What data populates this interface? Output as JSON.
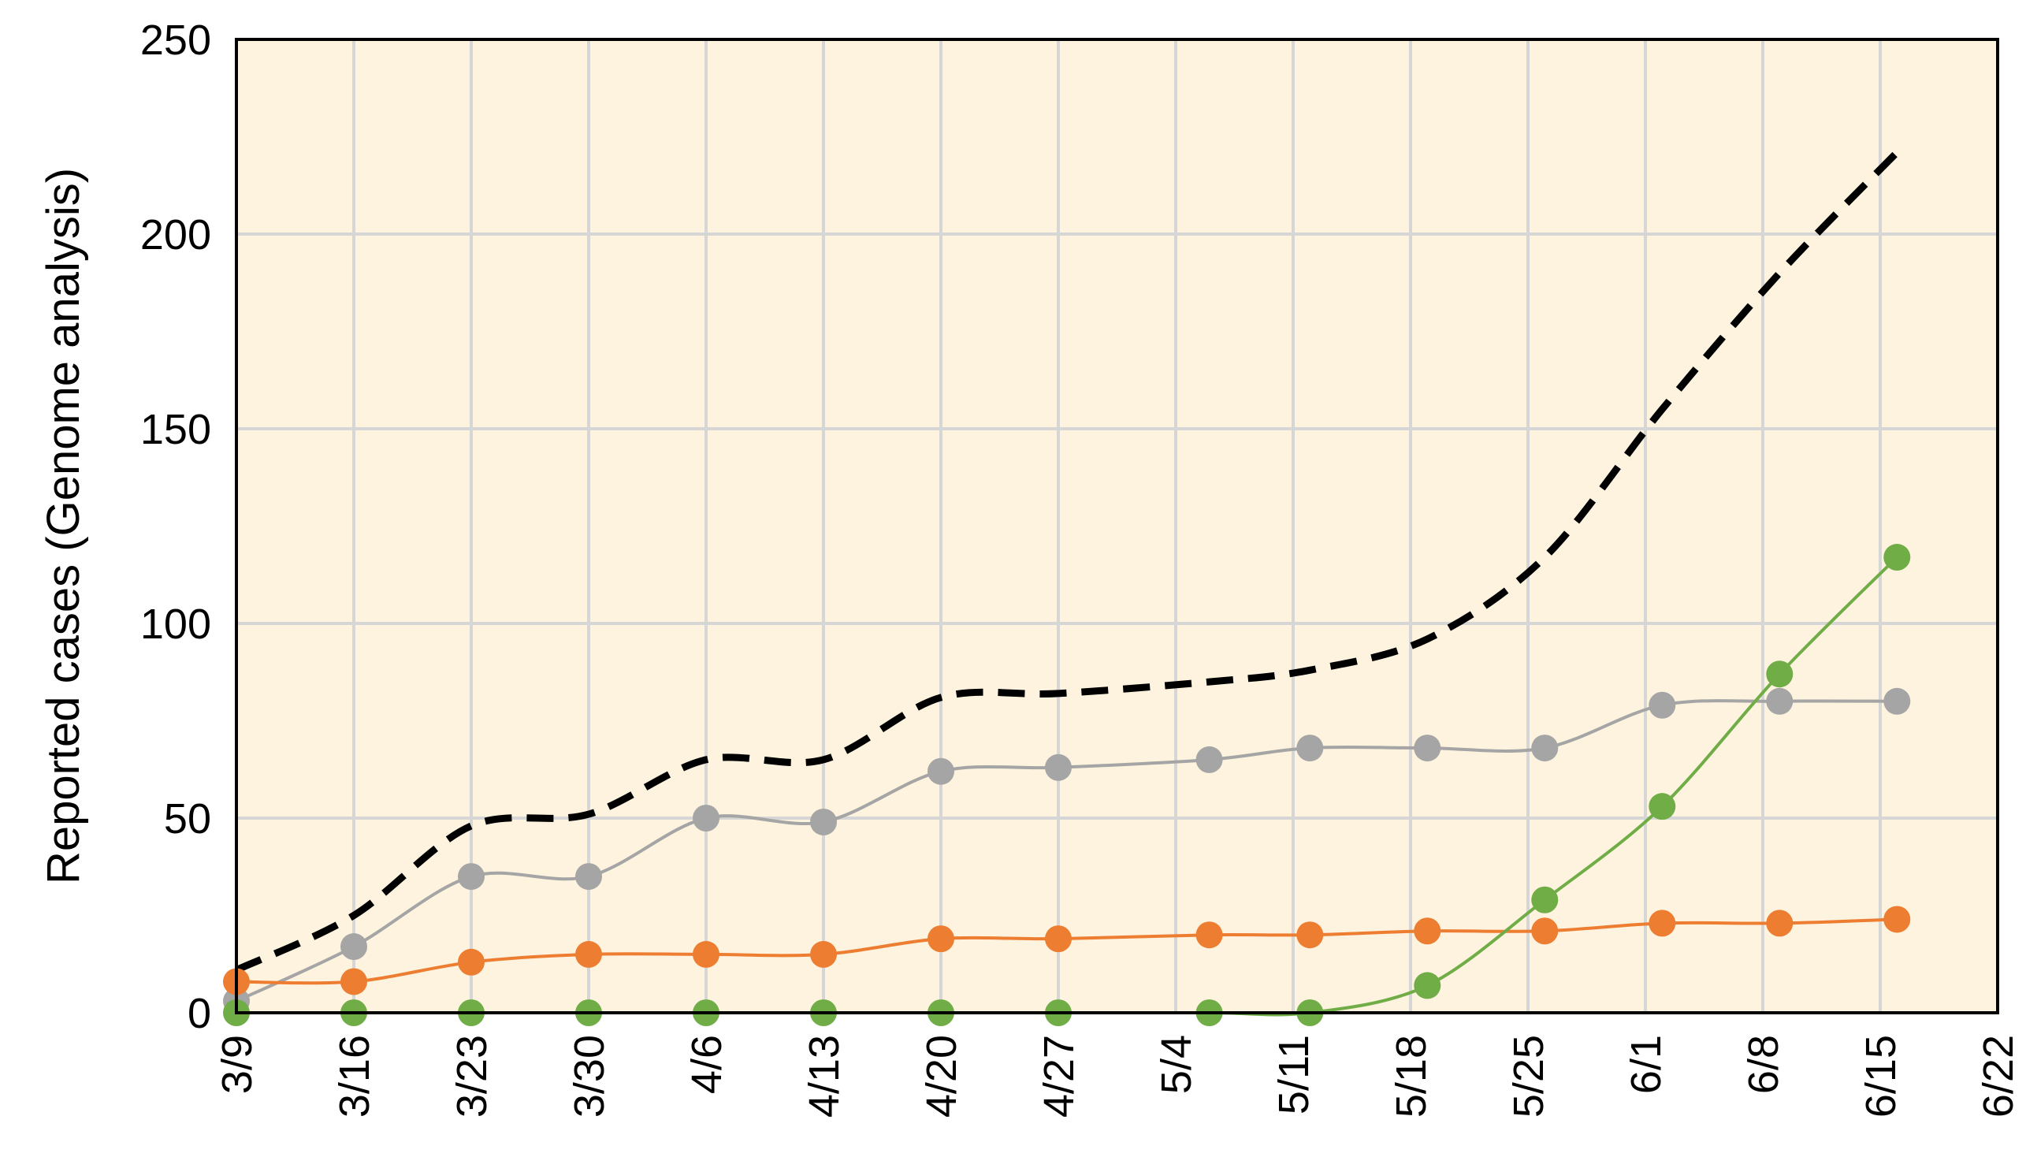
{
  "chart_data": {
    "type": "line",
    "title": "",
    "xlabel": "",
    "ylabel": "Reported cases (Genome analysis)",
    "x_ticks": [
      "3/9",
      "3/16",
      "3/23",
      "3/30",
      "4/6",
      "4/13",
      "4/20",
      "4/27",
      "5/4",
      "5/11",
      "5/18",
      "5/25",
      "6/1",
      "6/8",
      "6/15",
      "6/22"
    ],
    "y_ticks": [
      0,
      50,
      100,
      150,
      200,
      250
    ],
    "xlim": [
      "3/9",
      "6/22"
    ],
    "ylim": [
      0,
      250
    ],
    "grid": true,
    "legend": "none",
    "background_color": "#fdf3df",
    "series": [
      {
        "color": "#000000",
        "style": "dashed",
        "markers": false,
        "points": [
          {
            "x": "3/9",
            "y": 11
          },
          {
            "x": "3/16",
            "y": 25
          },
          {
            "x": "3/23",
            "y": 48
          },
          {
            "x": "3/30",
            "y": 51
          },
          {
            "x": "4/6",
            "y": 65
          },
          {
            "x": "4/13",
            "y": 65
          },
          {
            "x": "4/20",
            "y": 81
          },
          {
            "x": "4/27",
            "y": 82
          },
          {
            "x": "5/6",
            "y": 85
          },
          {
            "x": "5/12",
            "y": 88
          },
          {
            "x": "5/19",
            "y": 96
          },
          {
            "x": "5/26",
            "y": 117
          },
          {
            "x": "6/2",
            "y": 155
          },
          {
            "x": "6/9",
            "y": 190
          },
          {
            "x": "6/16",
            "y": 221
          }
        ]
      },
      {
        "color": "#a5a5a5",
        "style": "solid",
        "markers": true,
        "points": [
          {
            "x": "3/9",
            "y": 3
          },
          {
            "x": "3/16",
            "y": 17
          },
          {
            "x": "3/23",
            "y": 35
          },
          {
            "x": "3/30",
            "y": 35
          },
          {
            "x": "4/6",
            "y": 50
          },
          {
            "x": "4/13",
            "y": 49
          },
          {
            "x": "4/20",
            "y": 62
          },
          {
            "x": "4/27",
            "y": 63
          },
          {
            "x": "5/6",
            "y": 65
          },
          {
            "x": "5/12",
            "y": 68
          },
          {
            "x": "5/19",
            "y": 68
          },
          {
            "x": "5/26",
            "y": 68
          },
          {
            "x": "6/2",
            "y": 79
          },
          {
            "x": "6/9",
            "y": 80
          },
          {
            "x": "6/16",
            "y": 80
          }
        ]
      },
      {
        "color": "#ed7d31",
        "style": "solid",
        "markers": true,
        "points": [
          {
            "x": "3/9",
            "y": 8
          },
          {
            "x": "3/16",
            "y": 8
          },
          {
            "x": "3/23",
            "y": 13
          },
          {
            "x": "3/30",
            "y": 15
          },
          {
            "x": "4/6",
            "y": 15
          },
          {
            "x": "4/13",
            "y": 15
          },
          {
            "x": "4/20",
            "y": 19
          },
          {
            "x": "4/27",
            "y": 19
          },
          {
            "x": "5/6",
            "y": 20
          },
          {
            "x": "5/12",
            "y": 20
          },
          {
            "x": "5/19",
            "y": 21
          },
          {
            "x": "5/26",
            "y": 21
          },
          {
            "x": "6/2",
            "y": 23
          },
          {
            "x": "6/9",
            "y": 23
          },
          {
            "x": "6/16",
            "y": 24
          }
        ]
      },
      {
        "color": "#70ad47",
        "style": "solid",
        "markers": true,
        "points": [
          {
            "x": "3/9",
            "y": 0
          },
          {
            "x": "3/16",
            "y": 0
          },
          {
            "x": "3/23",
            "y": 0
          },
          {
            "x": "3/30",
            "y": 0
          },
          {
            "x": "4/6",
            "y": 0
          },
          {
            "x": "4/13",
            "y": 0
          },
          {
            "x": "4/20",
            "y": 0
          },
          {
            "x": "4/27",
            "y": 0
          },
          {
            "x": "5/6",
            "y": 0
          },
          {
            "x": "5/12",
            "y": 0
          },
          {
            "x": "5/19",
            "y": 7
          },
          {
            "x": "5/26",
            "y": 29
          },
          {
            "x": "6/2",
            "y": 53
          },
          {
            "x": "6/9",
            "y": 87
          },
          {
            "x": "6/16",
            "y": 117
          }
        ]
      }
    ]
  }
}
